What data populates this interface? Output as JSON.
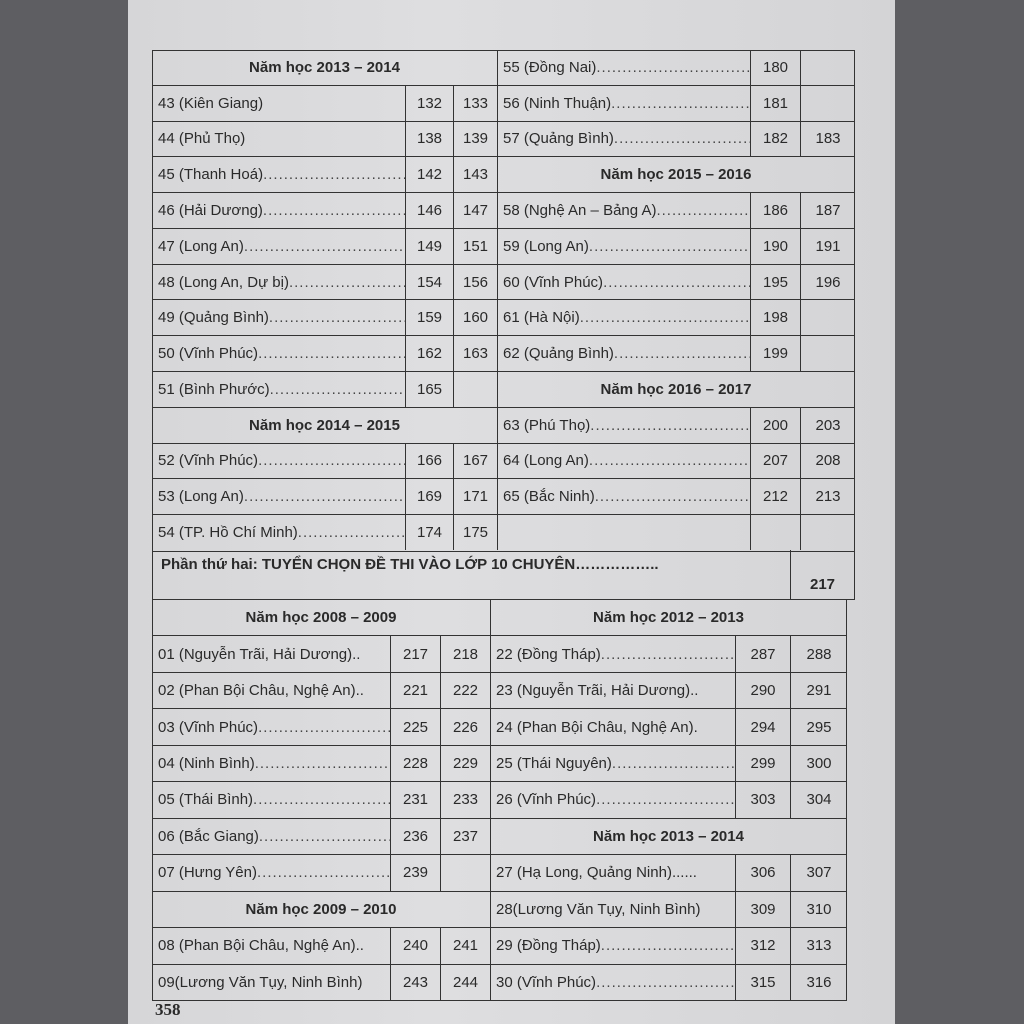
{
  "page_number": "358",
  "top_left": [
    {
      "type": "heading",
      "text": "Năm học 2013 – 2014"
    },
    {
      "label": "43 (Kiên Giang)",
      "p": [
        "132",
        "133"
      ],
      "dots": false
    },
    {
      "label": "44 (Phủ Thọ)",
      "p": [
        "138",
        "139"
      ],
      "dots": false
    },
    {
      "label": "45 (Thanh Hoá)",
      "p": [
        "142",
        "143"
      ],
      "dots": true
    },
    {
      "label": "46 (Hải Dương)",
      "p": [
        "146",
        "147"
      ],
      "dots": true
    },
    {
      "label": "47 (Long An)",
      "p": [
        "149",
        "151"
      ],
      "dots": true
    },
    {
      "label": "48 (Long An, Dự bị)",
      "p": [
        "154",
        "156"
      ],
      "dots": true
    },
    {
      "label": "49 (Quảng Bình)",
      "p": [
        "159",
        "160"
      ],
      "dots": true
    },
    {
      "label": "50 (Vĩnh Phúc)",
      "p": [
        "162",
        "163"
      ],
      "dots": true
    },
    {
      "label": "51 (Bình Phước)",
      "p": [
        "165",
        ""
      ],
      "dots": true
    },
    {
      "type": "heading",
      "text": "Năm học 2014 – 2015"
    },
    {
      "label": "52 (Vĩnh Phúc)",
      "p": [
        "166",
        "167"
      ],
      "dots": true
    },
    {
      "label": "53 (Long An)",
      "p": [
        "169",
        "171"
      ],
      "dots": true
    },
    {
      "label": "54 (TP. Hồ Chí Minh)",
      "p": [
        "174",
        "175"
      ],
      "dots": true
    }
  ],
  "top_right": [
    {
      "label": "55 (Đồng Nai)",
      "p": [
        "180",
        ""
      ],
      "dots": true
    },
    {
      "label": "56 (Ninh Thuận)",
      "p": [
        "181",
        ""
      ],
      "dots": true
    },
    {
      "label": "57 (Quảng Bình)",
      "p": [
        "182",
        "183"
      ],
      "dots": true
    },
    {
      "type": "heading",
      "text": "Năm học 2015 – 2016"
    },
    {
      "label": "58 (Nghệ An – Bảng A)",
      "p": [
        "186",
        "187"
      ],
      "dots": true
    },
    {
      "label": "59 (Long An)",
      "p": [
        "190",
        "191"
      ],
      "dots": true
    },
    {
      "label": "60 (Vĩnh Phúc)",
      "p": [
        "195",
        "196"
      ],
      "dots": true
    },
    {
      "label": "61 (Hà Nội)",
      "p": [
        "198",
        ""
      ],
      "dots": true
    },
    {
      "label": "62 (Quảng Bình)",
      "p": [
        "199",
        ""
      ],
      "dots": true
    },
    {
      "type": "heading",
      "text": "Năm học 2016 – 2017"
    },
    {
      "label": "63 (Phú Thọ)",
      "p": [
        "200",
        "203"
      ],
      "dots": true
    },
    {
      "label": "64 (Long An)",
      "p": [
        "207",
        "208"
      ],
      "dots": true
    },
    {
      "label": "65 (Bắc Ninh)",
      "p": [
        "212",
        "213"
      ],
      "dots": true
    },
    {
      "label": "",
      "p": [
        "",
        ""
      ],
      "dots": false
    }
  ],
  "part_two": {
    "title": "Phần thứ hai: TUYỂN CHỌN ĐỀ THI VÀO LỚP 10 CHUYÊN",
    "dots": "……………..",
    "page": "217"
  },
  "bottom_left": [
    {
      "type": "heading",
      "text": "Năm học 2008 – 2009"
    },
    {
      "label": "01 (Nguyễn Trãi, Hải Dương)..",
      "p": [
        "217",
        "218"
      ],
      "dots": false
    },
    {
      "label": "02 (Phan Bội Châu, Nghệ An)..",
      "p": [
        "221",
        "222"
      ],
      "dots": false
    },
    {
      "label": "03 (Vĩnh Phúc)",
      "p": [
        "225",
        "226"
      ],
      "dots": true
    },
    {
      "label": "04 (Ninh Bình)",
      "p": [
        "228",
        "229"
      ],
      "dots": true
    },
    {
      "label": "05 (Thái Bình)",
      "p": [
        "231",
        "233"
      ],
      "dots": true
    },
    {
      "label": "06 (Bắc Giang)",
      "p": [
        "236",
        "237"
      ],
      "dots": true
    },
    {
      "label": "07 (Hưng Yên)",
      "p": [
        "239",
        ""
      ],
      "dots": true
    },
    {
      "type": "heading",
      "text": "Năm học 2009 – 2010"
    },
    {
      "label": "08 (Phan Bội Châu, Nghệ An)..",
      "p": [
        "240",
        "241"
      ],
      "dots": false
    },
    {
      "label": "09(Lương Văn Tụy, Ninh Bình)",
      "p": [
        "243",
        "244"
      ],
      "dots": false
    }
  ],
  "bottom_right": [
    {
      "type": "heading",
      "text": "Năm học 2012 – 2013"
    },
    {
      "label": "22 (Đồng Tháp)",
      "p": [
        "287",
        "288"
      ],
      "dots": true
    },
    {
      "label": "23 (Nguyễn Trãi, Hải Dương)..",
      "p": [
        "290",
        "291"
      ],
      "dots": false
    },
    {
      "label": "24 (Phan Bội Châu, Nghệ An).",
      "p": [
        "294",
        "295"
      ],
      "dots": false
    },
    {
      "label": "25 (Thái Nguyên)",
      "p": [
        "299",
        "300"
      ],
      "dots": true
    },
    {
      "label": "26 (Vĩnh Phúc)",
      "p": [
        "303",
        "304"
      ],
      "dots": true
    },
    {
      "type": "heading",
      "text": "Năm học 2013 – 2014"
    },
    {
      "label": "27 (Hạ Long, Quảng Ninh)......",
      "p": [
        "306",
        "307"
      ],
      "dots": false
    },
    {
      "label": "28(Lương Văn Tụy, Ninh Bình)",
      "p": [
        "309",
        "310"
      ],
      "dots": false
    },
    {
      "label": "29 (Đồng Tháp)",
      "p": [
        "312",
        "313"
      ],
      "dots": true
    },
    {
      "label": "30 (Vĩnh Phúc)",
      "p": [
        "315",
        "316"
      ],
      "dots": true
    }
  ]
}
